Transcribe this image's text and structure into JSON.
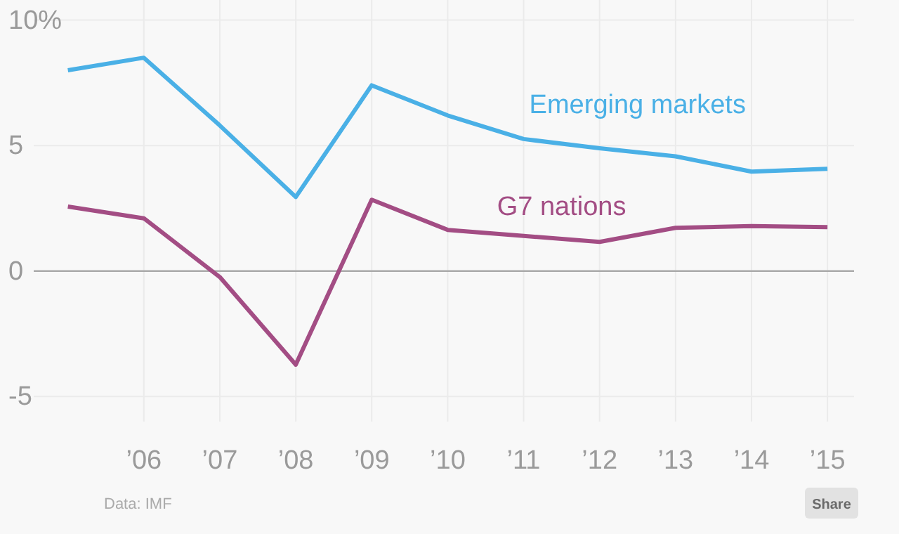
{
  "chart_data": {
    "type": "line",
    "x": [
      2005,
      2006,
      2007,
      2008,
      2009,
      2010,
      2011,
      2012,
      2013,
      2014,
      2015
    ],
    "series": [
      {
        "name": "Emerging markets",
        "color": "#4ab0e6",
        "values": [
          8.0,
          8.5,
          5.8,
          2.95,
          7.4,
          6.2,
          5.26,
          4.89,
          4.57,
          3.96,
          4.07
        ]
      },
      {
        "name": "G7 nations",
        "color": "#a34d84",
        "values": [
          2.57,
          2.1,
          -0.24,
          -3.73,
          2.84,
          1.64,
          1.4,
          1.16,
          1.72,
          1.79,
          1.75
        ]
      }
    ],
    "xlim": [
      2004.55,
      2015.35
    ],
    "xticks": [
      {
        "value": 2006,
        "label": "’06"
      },
      {
        "value": 2007,
        "label": "’07"
      },
      {
        "value": 2008,
        "label": "’08"
      },
      {
        "value": 2009,
        "label": "’09"
      },
      {
        "value": 2010,
        "label": "’10"
      },
      {
        "value": 2011,
        "label": "’11"
      },
      {
        "value": 2012,
        "label": "’12"
      },
      {
        "value": 2013,
        "label": "’13"
      },
      {
        "value": 2014,
        "label": "’14"
      },
      {
        "value": 2015,
        "label": "’15"
      }
    ],
    "ylim": [
      -6,
      10.8
    ],
    "yticks": [
      {
        "value": -5,
        "label": "-5"
      },
      0,
      5,
      {
        "value": 10,
        "label": "10%"
      }
    ],
    "ref_lines": [
      {
        "axis": "y",
        "value": 0,
        "color": "#aaaaaa"
      }
    ],
    "grid": true,
    "legend": false,
    "marker": "none",
    "line_style": "solid",
    "annotations": [
      "Data: IMF",
      "Share"
    ]
  }
}
